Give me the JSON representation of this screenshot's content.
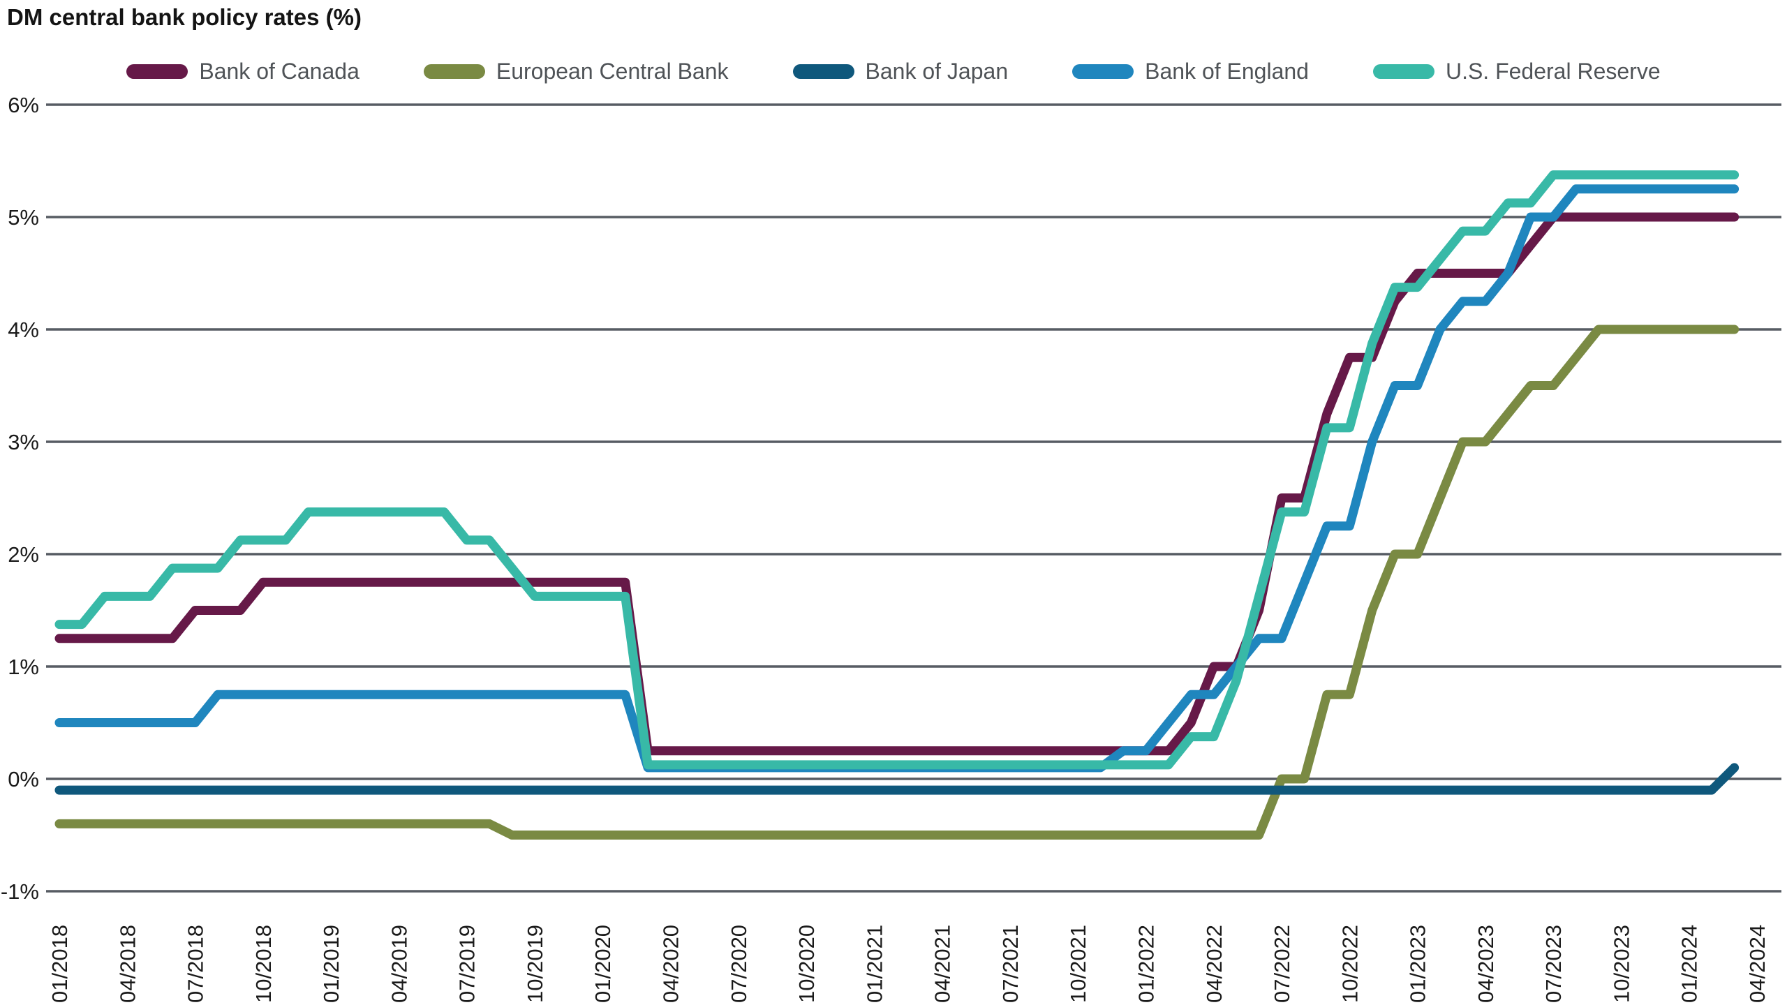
{
  "chart_data": {
    "type": "line",
    "title": "DM central bank policy rates (%)",
    "legend_position": "top",
    "grid": "horizontal",
    "grid_color": "#575c63",
    "frequency": "monthly",
    "x_start": "01/2018",
    "x_end": "03/2024",
    "x_tick_labels": [
      "01/2018",
      "04/2018",
      "07/2018",
      "10/2018",
      "01/2019",
      "04/2019",
      "07/2019",
      "10/2019",
      "01/2020",
      "04/2020",
      "07/2020",
      "10/2020",
      "01/2021",
      "04/2021",
      "07/2021",
      "10/2021",
      "01/2022",
      "04/2022",
      "07/2022",
      "10/2022",
      "01/2023",
      "04/2023",
      "07/2023",
      "10/2023",
      "01/2024",
      "04/2024"
    ],
    "y_tick_values": [
      6,
      5,
      4,
      3,
      2,
      1,
      0,
      -1
    ],
    "y_tick_labels": [
      "6%",
      "5%",
      "4%",
      "3%",
      "2%",
      "1%",
      "0%",
      "-1%"
    ],
    "ylim": [
      -1.35,
      6.2
    ],
    "series": [
      {
        "name": "Bank of Canada",
        "color": "#661948",
        "values": [
          1.25,
          1.25,
          1.25,
          1.25,
          1.25,
          1.25,
          1.5,
          1.5,
          1.5,
          1.75,
          1.75,
          1.75,
          1.75,
          1.75,
          1.75,
          1.75,
          1.75,
          1.75,
          1.75,
          1.75,
          1.75,
          1.75,
          1.75,
          1.75,
          1.75,
          1.75,
          0.25,
          0.25,
          0.25,
          0.25,
          0.25,
          0.25,
          0.25,
          0.25,
          0.25,
          0.25,
          0.25,
          0.25,
          0.25,
          0.25,
          0.25,
          0.25,
          0.25,
          0.25,
          0.25,
          0.25,
          0.25,
          0.25,
          0.25,
          0.25,
          0.5,
          1.0,
          1.0,
          1.5,
          2.5,
          2.5,
          3.25,
          3.75,
          3.75,
          4.25,
          4.5,
          4.5,
          4.5,
          4.5,
          4.5,
          4.75,
          5.0,
          5.0,
          5.0,
          5.0,
          5.0,
          5.0,
          5.0,
          5.0,
          5.0
        ]
      },
      {
        "name": "European Central Bank",
        "color": "#7a8a43",
        "values": [
          -0.4,
          -0.4,
          -0.4,
          -0.4,
          -0.4,
          -0.4,
          -0.4,
          -0.4,
          -0.4,
          -0.4,
          -0.4,
          -0.4,
          -0.4,
          -0.4,
          -0.4,
          -0.4,
          -0.4,
          -0.4,
          -0.4,
          -0.4,
          -0.5,
          -0.5,
          -0.5,
          -0.5,
          -0.5,
          -0.5,
          -0.5,
          -0.5,
          -0.5,
          -0.5,
          -0.5,
          -0.5,
          -0.5,
          -0.5,
          -0.5,
          -0.5,
          -0.5,
          -0.5,
          -0.5,
          -0.5,
          -0.5,
          -0.5,
          -0.5,
          -0.5,
          -0.5,
          -0.5,
          -0.5,
          -0.5,
          -0.5,
          -0.5,
          -0.5,
          -0.5,
          -0.5,
          -0.5,
          0.0,
          0.0,
          0.75,
          0.75,
          1.5,
          2.0,
          2.0,
          2.5,
          3.0,
          3.0,
          3.25,
          3.5,
          3.5,
          3.75,
          4.0,
          4.0,
          4.0,
          4.0,
          4.0,
          4.0,
          4.0
        ]
      },
      {
        "name": "Bank of Japan",
        "color": "#0f587c",
        "values": [
          -0.1,
          -0.1,
          -0.1,
          -0.1,
          -0.1,
          -0.1,
          -0.1,
          -0.1,
          -0.1,
          -0.1,
          -0.1,
          -0.1,
          -0.1,
          -0.1,
          -0.1,
          -0.1,
          -0.1,
          -0.1,
          -0.1,
          -0.1,
          -0.1,
          -0.1,
          -0.1,
          -0.1,
          -0.1,
          -0.1,
          -0.1,
          -0.1,
          -0.1,
          -0.1,
          -0.1,
          -0.1,
          -0.1,
          -0.1,
          -0.1,
          -0.1,
          -0.1,
          -0.1,
          -0.1,
          -0.1,
          -0.1,
          -0.1,
          -0.1,
          -0.1,
          -0.1,
          -0.1,
          -0.1,
          -0.1,
          -0.1,
          -0.1,
          -0.1,
          -0.1,
          -0.1,
          -0.1,
          -0.1,
          -0.1,
          -0.1,
          -0.1,
          -0.1,
          -0.1,
          -0.1,
          -0.1,
          -0.1,
          -0.1,
          -0.1,
          -0.1,
          -0.1,
          -0.1,
          -0.1,
          -0.1,
          -0.1,
          -0.1,
          -0.1,
          -0.1,
          0.1
        ]
      },
      {
        "name": "Bank of England",
        "color": "#1f86be",
        "values": [
          0.5,
          0.5,
          0.5,
          0.5,
          0.5,
          0.5,
          0.5,
          0.75,
          0.75,
          0.75,
          0.75,
          0.75,
          0.75,
          0.75,
          0.75,
          0.75,
          0.75,
          0.75,
          0.75,
          0.75,
          0.75,
          0.75,
          0.75,
          0.75,
          0.75,
          0.75,
          0.1,
          0.1,
          0.1,
          0.1,
          0.1,
          0.1,
          0.1,
          0.1,
          0.1,
          0.1,
          0.1,
          0.1,
          0.1,
          0.1,
          0.1,
          0.1,
          0.1,
          0.1,
          0.1,
          0.1,
          0.1,
          0.25,
          0.25,
          0.5,
          0.75,
          0.75,
          1.0,
          1.25,
          1.25,
          1.75,
          2.25,
          2.25,
          3.0,
          3.5,
          3.5,
          4.0,
          4.25,
          4.25,
          4.5,
          5.0,
          5.0,
          5.25,
          5.25,
          5.25,
          5.25,
          5.25,
          5.25,
          5.25,
          5.25
        ]
      },
      {
        "name": "U.S. Federal Reserve",
        "color": "#38b9a7",
        "values": [
          1.375,
          1.375,
          1.625,
          1.625,
          1.625,
          1.875,
          1.875,
          1.875,
          2.125,
          2.125,
          2.125,
          2.375,
          2.375,
          2.375,
          2.375,
          2.375,
          2.375,
          2.375,
          2.125,
          2.125,
          1.875,
          1.625,
          1.625,
          1.625,
          1.625,
          1.625,
          0.125,
          0.125,
          0.125,
          0.125,
          0.125,
          0.125,
          0.125,
          0.125,
          0.125,
          0.125,
          0.125,
          0.125,
          0.125,
          0.125,
          0.125,
          0.125,
          0.125,
          0.125,
          0.125,
          0.125,
          0.125,
          0.125,
          0.125,
          0.125,
          0.375,
          0.375,
          0.875,
          1.625,
          2.375,
          2.375,
          3.125,
          3.125,
          3.875,
          4.375,
          4.375,
          4.625,
          4.875,
          4.875,
          5.125,
          5.125,
          5.375,
          5.375,
          5.375,
          5.375,
          5.375,
          5.375,
          5.375,
          5.375,
          5.375
        ]
      }
    ]
  }
}
